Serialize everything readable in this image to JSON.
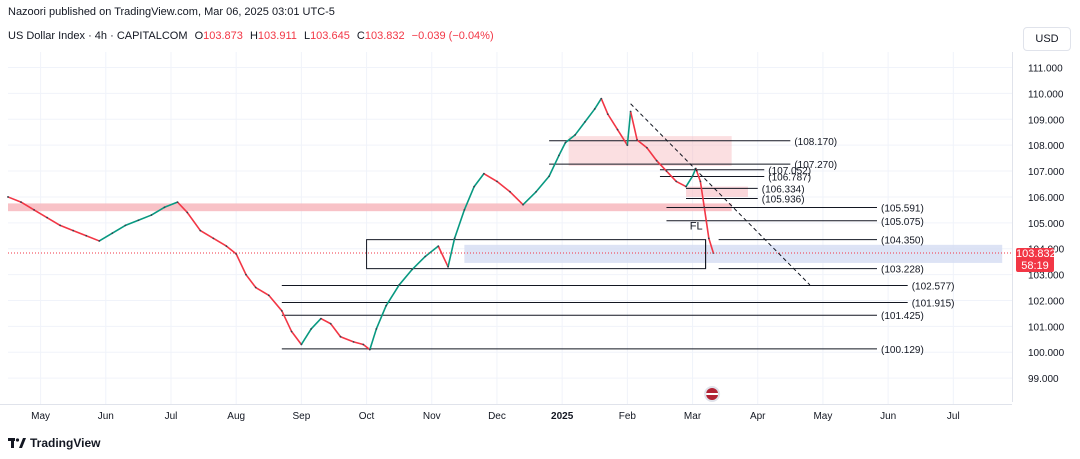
{
  "header": {
    "publisher": "Nazoori published on TradingView.com, Mar 06, 2025 03:01 UTC-5"
  },
  "legend": {
    "title": "US Dollar Index · 4h · CAPITALCOM",
    "open_label": "O",
    "open": "103.873",
    "high_label": "H",
    "high": "103.911",
    "low_label": "L",
    "low": "103.645",
    "close_label": "C",
    "close": "103.832",
    "change": "−0.039 (−0.04%)"
  },
  "currency_button": "USD",
  "last_price": {
    "value": "103.832",
    "countdown": "58:19"
  },
  "footer": {
    "brand": "TradingView"
  },
  "chart_data": {
    "type": "line",
    "title": "US Dollar Index · 4h · CAPITALCOM",
    "y_ticks": [
      99,
      100,
      101,
      102,
      103,
      104,
      105,
      106,
      107,
      108,
      109,
      110,
      111
    ],
    "y_tick_labels": [
      "99.000",
      "100.000",
      "101.000",
      "102.000",
      "103.000",
      "104.000",
      "105.000",
      "106.000",
      "107.000",
      "108.000",
      "109.000",
      "110.000",
      "111.000"
    ],
    "ylim": [
      98.0,
      111.6
    ],
    "x_labels": [
      "May",
      "Jun",
      "Jul",
      "Aug",
      "Sep",
      "Oct",
      "Nov",
      "Dec",
      "2025",
      "Feb",
      "Mar",
      "Apr",
      "May",
      "Jun",
      "Jul"
    ],
    "x_label_months": [
      0,
      1,
      2,
      3,
      4,
      5,
      6,
      7,
      8,
      9,
      10,
      11,
      12,
      13,
      14
    ],
    "xlim_months": [
      -0.5,
      14.9
    ],
    "series": [
      {
        "points": [
          [
            -0.5,
            106.0
          ],
          [
            -0.3,
            105.8
          ],
          [
            -0.1,
            105.5
          ],
          [
            0.1,
            105.2
          ],
          [
            0.3,
            104.9
          ],
          [
            0.5,
            104.7
          ],
          [
            0.7,
            104.5
          ],
          [
            0.9,
            104.3
          ],
          [
            1.1,
            104.6
          ],
          [
            1.3,
            104.9
          ],
          [
            1.5,
            105.1
          ],
          [
            1.7,
            105.3
          ],
          [
            1.9,
            105.6
          ],
          [
            2.1,
            105.8
          ],
          [
            2.25,
            105.4
          ],
          [
            2.45,
            104.7
          ],
          [
            2.65,
            104.4
          ],
          [
            2.85,
            104.1
          ],
          [
            3.0,
            103.8
          ],
          [
            3.15,
            103.0
          ],
          [
            3.3,
            102.5
          ],
          [
            3.5,
            102.2
          ],
          [
            3.7,
            101.6
          ],
          [
            3.85,
            100.8
          ],
          [
            4.0,
            100.3
          ],
          [
            4.15,
            100.9
          ],
          [
            4.3,
            101.3
          ],
          [
            4.45,
            101.1
          ],
          [
            4.6,
            100.6
          ],
          [
            4.8,
            100.4
          ],
          [
            4.95,
            100.3
          ],
          [
            5.05,
            100.1
          ],
          [
            5.15,
            100.9
          ],
          [
            5.3,
            101.8
          ],
          [
            5.5,
            102.6
          ],
          [
            5.7,
            103.2
          ],
          [
            5.9,
            103.7
          ],
          [
            6.1,
            104.1
          ],
          [
            6.25,
            103.3
          ],
          [
            6.35,
            104.4
          ],
          [
            6.5,
            105.5
          ],
          [
            6.65,
            106.4
          ],
          [
            6.8,
            106.9
          ],
          [
            7.0,
            106.6
          ],
          [
            7.2,
            106.2
          ],
          [
            7.4,
            105.7
          ],
          [
            7.6,
            106.2
          ],
          [
            7.8,
            106.8
          ],
          [
            7.95,
            107.6
          ],
          [
            8.05,
            108.1
          ],
          [
            8.2,
            108.4
          ],
          [
            8.35,
            108.9
          ],
          [
            8.5,
            109.4
          ],
          [
            8.6,
            109.8
          ],
          [
            8.7,
            109.2
          ],
          [
            8.85,
            108.6
          ],
          [
            9.0,
            108.0
          ],
          [
            9.05,
            109.3
          ],
          [
            9.15,
            108.2
          ],
          [
            9.3,
            107.9
          ],
          [
            9.45,
            107.4
          ],
          [
            9.6,
            107.0
          ],
          [
            9.75,
            106.6
          ],
          [
            9.9,
            106.4
          ],
          [
            10.0,
            106.8
          ],
          [
            10.05,
            107.1
          ],
          [
            10.12,
            106.6
          ],
          [
            10.18,
            105.6
          ],
          [
            10.25,
            104.4
          ],
          [
            10.32,
            103.83
          ]
        ]
      }
    ],
    "levels": [
      {
        "label": "(108.170)",
        "value": 108.17
      },
      {
        "label": "(107.270)",
        "value": 107.27
      },
      {
        "label": "(107.052)",
        "value": 107.05
      },
      {
        "label": "(106.787)",
        "value": 106.79
      },
      {
        "label": "(106.334)",
        "value": 106.33
      },
      {
        "label": "(105.936)",
        "value": 105.94
      },
      {
        "label": "(105.591)",
        "value": 105.59
      },
      {
        "label": "(105.075)",
        "value": 105.08
      },
      {
        "label": "(104.350)",
        "value": 104.35
      },
      {
        "label": "(103.228)",
        "value": 103.23
      },
      {
        "label": "(102.577)",
        "value": 102.58
      },
      {
        "label": "(101.915)",
        "value": 101.92
      },
      {
        "label": "(101.425)",
        "value": 101.43
      },
      {
        "label": "(100.129)",
        "value": 100.13
      }
    ],
    "annotation": "FL",
    "resistance_zone": [
      105.45,
      105.75
    ],
    "demand_box": [
      103.23,
      104.35
    ],
    "projection_zone": [
      103.45,
      104.15
    ],
    "trendline": {
      "from": [
        9.05,
        109.6
      ],
      "to": [
        11.8,
        102.6
      ]
    },
    "last_price_line": 103.832,
    "grid": true,
    "colors": {
      "up": "#089981",
      "down": "#f23645",
      "price": "#f23645",
      "zone_red": "#f7b7bd",
      "zone_blue": "#d5dcf3",
      "text": "#131722"
    }
  }
}
